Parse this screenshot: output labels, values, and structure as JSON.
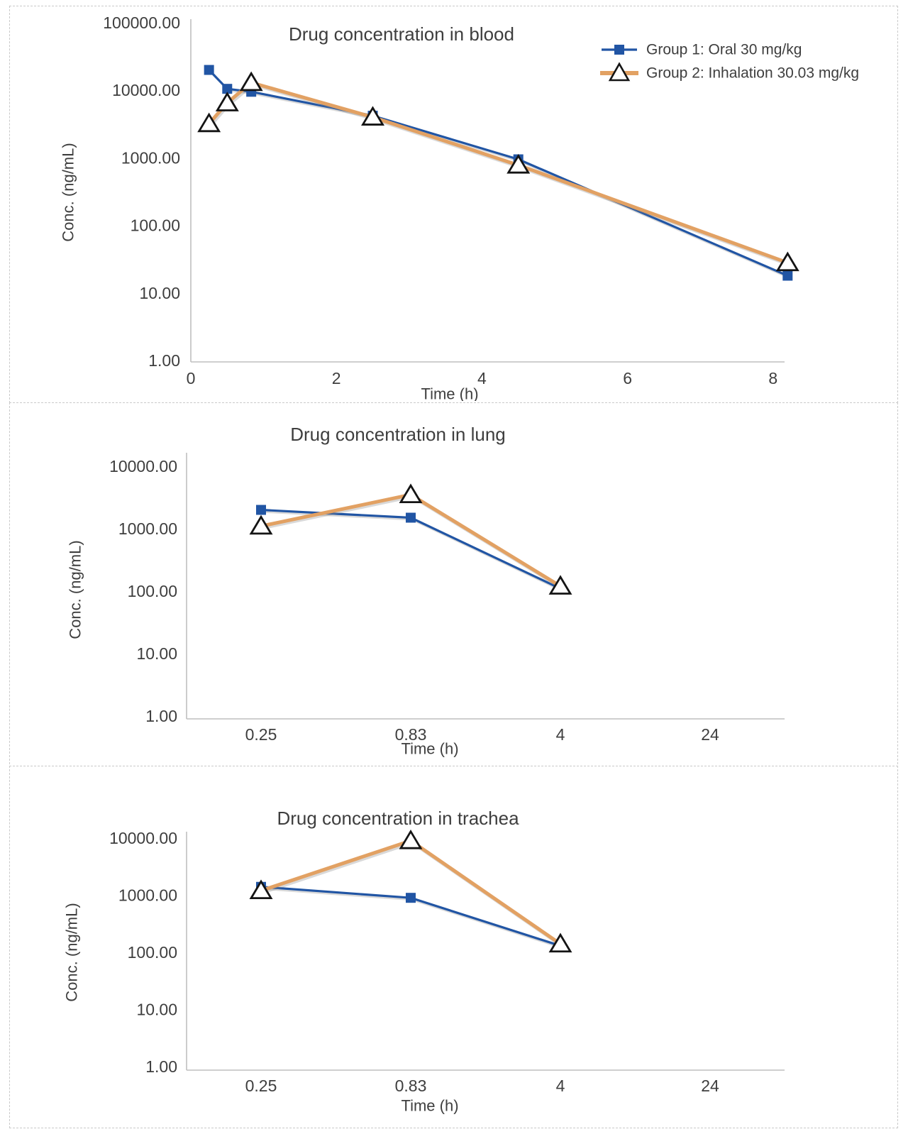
{
  "colors": {
    "group1_blue": "#2155A4",
    "group2_orange": "#E2A163",
    "axis_line": "#BFBFBF",
    "text": "#3E3E3E",
    "marker_triangle_fill": "#FFFFFF",
    "marker_triangle_stroke": "#141414",
    "panel_border": "#C9C9C9"
  },
  "chart_data": [
    {
      "type": "line",
      "title": "Drug concentration in blood",
      "xlabel": "Time (h)",
      "ylabel": "Conc. (ng/mL)",
      "x_scale": "linear",
      "y_scale": "log",
      "xlim": [
        0,
        8.2
      ],
      "ylim": [
        1,
        100000
      ],
      "grid": false,
      "legend_position": "top-right",
      "x_tick_labels": [
        "0",
        "2",
        "4",
        "6",
        "8"
      ],
      "y_tick_labels": [
        "100000.00",
        "10000.00",
        "1000.00",
        "100.00",
        "10.00",
        "1.00"
      ],
      "series": [
        {
          "name": "Group 1: Oral 30 mg/kg",
          "marker": "square",
          "x": [
            0.25,
            0.5,
            0.83,
            2.5,
            4.5,
            8.2
          ],
          "y": [
            20000,
            10500,
            9500,
            4200,
            950,
            18
          ]
        },
        {
          "name": "Group 2: Inhalation 30.03 mg/kg",
          "marker": "triangle",
          "x": [
            0.25,
            0.5,
            0.83,
            2.5,
            4.5,
            8.2
          ],
          "y": [
            3200,
            6500,
            13000,
            4000,
            780,
            28
          ]
        }
      ]
    },
    {
      "type": "line",
      "title": "Drug concentration in lung",
      "xlabel": "Time (h)",
      "ylabel": "Conc. (ng/mL)",
      "x_scale": "categorical",
      "y_scale": "log",
      "ylim": [
        1,
        10000
      ],
      "grid": false,
      "legend_position": "none",
      "x_tick_labels": [
        "0.25",
        "0.83",
        "4",
        "24"
      ],
      "y_tick_labels": [
        "10000.00",
        "1000.00",
        "100.00",
        "10.00",
        "1.00"
      ],
      "series": [
        {
          "name": "Group 1: Oral 30 mg/kg",
          "marker": "square",
          "x": [
            0.25,
            0.83,
            4
          ],
          "y": [
            2000,
            1500,
            110
          ]
        },
        {
          "name": "Group 2: Inhalation 30.03 mg/kg",
          "marker": "triangle",
          "x": [
            0.25,
            0.83,
            4
          ],
          "y": [
            1100,
            3500,
            120
          ]
        }
      ]
    },
    {
      "type": "line",
      "title": "Drug concentration in trachea",
      "xlabel": "Time (h)",
      "ylabel": "Conc. (ng/mL)",
      "x_scale": "categorical",
      "y_scale": "log",
      "ylim": [
        1,
        10000
      ],
      "grid": false,
      "legend_position": "none",
      "x_tick_labels": [
        "0.25",
        "0.83",
        "4",
        "24"
      ],
      "y_tick_labels": [
        "10000.00",
        "1000.00",
        "100.00",
        "10.00",
        "1.00"
      ],
      "series": [
        {
          "name": "Group 1: Oral 30 mg/kg",
          "marker": "square",
          "x": [
            0.25,
            0.83,
            4
          ],
          "y": [
            1400,
            900,
            130
          ]
        },
        {
          "name": "Group 2: Inhalation 30.03 mg/kg",
          "marker": "triangle",
          "x": [
            0.25,
            0.83,
            4
          ],
          "y": [
            1200,
            9000,
            140
          ]
        }
      ]
    }
  ]
}
